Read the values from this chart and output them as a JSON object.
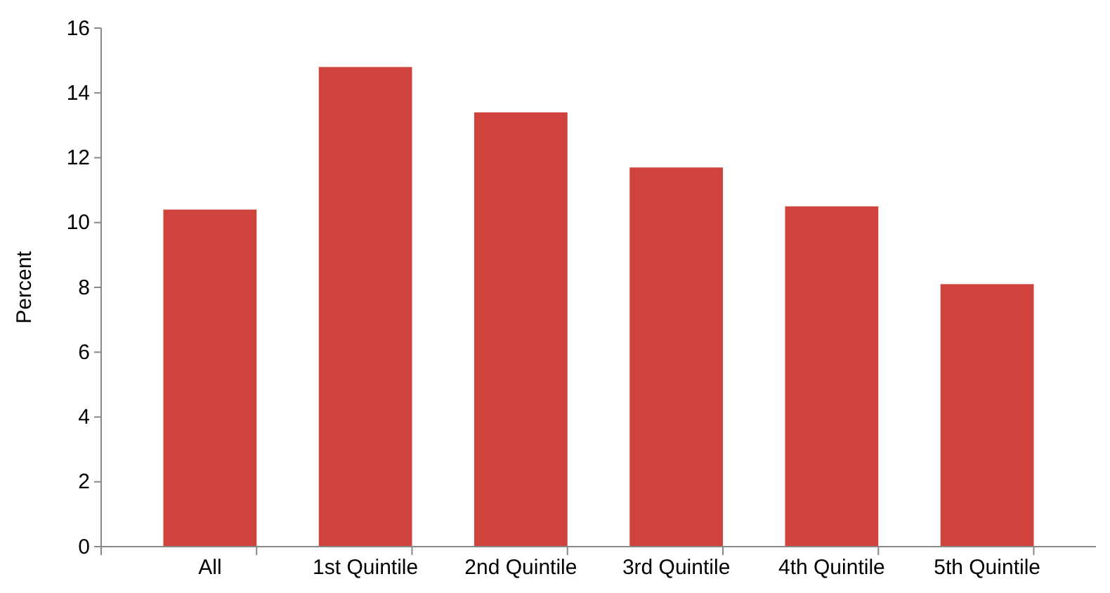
{
  "chart_data": {
    "type": "bar",
    "ylabel": "Percent",
    "categories": [
      "All",
      "1st Quintile",
      "2nd Quintile",
      "3rd Quintile",
      "4th Quintile",
      "5th Quintile"
    ],
    "values": [
      10.4,
      14.8,
      13.4,
      11.7,
      10.5,
      8.1
    ],
    "color": "#d0433d",
    "ylim": [
      0,
      16
    ],
    "yticks": [
      0,
      2,
      4,
      6,
      8,
      10,
      12,
      14,
      16
    ],
    "grid": false
  }
}
